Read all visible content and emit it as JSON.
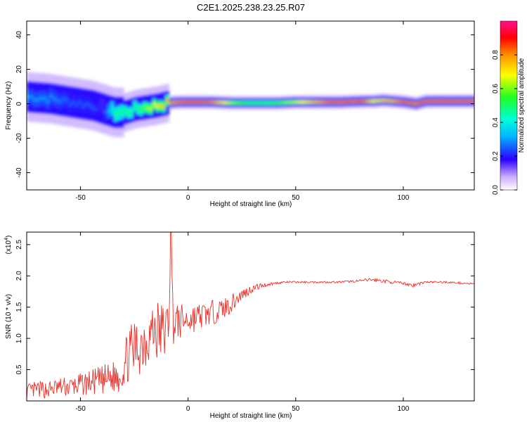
{
  "title": "C2E1.2025.238.23.25.R07",
  "chart_data": [
    {
      "type": "heatmap",
      "name": "spectrogram",
      "xlabel": "Height of straight line (km)",
      "ylabel": "Frequency (Hz)",
      "xlim": [
        -75,
        133
      ],
      "ylim": [
        -50,
        48
      ],
      "x_ticks": [
        -50,
        0,
        50,
        100
      ],
      "y_ticks": [
        -40,
        -20,
        0,
        20,
        40
      ],
      "colorbar": {
        "label": "Normalized spectral amplitude",
        "range": [
          0,
          1
        ],
        "ticks": [
          "0.0",
          "0.2",
          "0.4",
          "0.6",
          "0.8"
        ]
      },
      "ridge": {
        "x": [
          -75,
          -65,
          -55,
          -45,
          -40,
          -35,
          -30,
          -25,
          -20,
          -15,
          -10,
          -5,
          0,
          5,
          10,
          20,
          30,
          40,
          50,
          60,
          70,
          80,
          85,
          90,
          95,
          100,
          105,
          110,
          120,
          133
        ],
        "freq": [
          4,
          3,
          1,
          -1,
          -3,
          -5,
          -5,
          -3,
          -2,
          -1,
          0.5,
          1,
          1,
          1,
          1,
          0.5,
          0.5,
          0.5,
          1,
          1,
          1,
          1.5,
          1.5,
          2,
          1.5,
          1,
          0,
          1.5,
          1.5,
          1.5
        ],
        "amp": [
          0.3,
          0.3,
          0.25,
          0.25,
          0.2,
          0.5,
          0.5,
          0.5,
          0.6,
          0.7,
          0.8,
          0.85,
          0.9,
          0.9,
          0.85,
          0.6,
          0.5,
          0.55,
          0.65,
          0.8,
          0.95,
          0.9,
          0.7,
          0.75,
          0.8,
          0.9,
          0.85,
          0.95,
          0.95,
          0.95
        ]
      }
    },
    {
      "type": "line",
      "name": "snr",
      "xlabel": "Height of straight line (km)",
      "ylabel": "SNR (10 * v/v)",
      "scale_label": "(x10",
      "scale_exp": "4",
      "scale_close": ")",
      "xlim": [
        -75,
        133
      ],
      "ylim": [
        0,
        2.7
      ],
      "x_ticks": [
        -50,
        0,
        50,
        100
      ],
      "y_ticks": [
        "0.5",
        "1.0",
        "1.5",
        "2.0",
        "2.5"
      ],
      "series": [
        {
          "name": "SNR",
          "color": "#e8302a",
          "x": [
            -75,
            -70,
            -65,
            -60,
            -55,
            -50,
            -45,
            -40,
            -35,
            -32,
            -30,
            -28,
            -25,
            -22,
            -20,
            -18,
            -15,
            -12,
            -10,
            -9,
            -8,
            -7,
            -5,
            0,
            5,
            10,
            15,
            20,
            25,
            30,
            35,
            40,
            45,
            50,
            60,
            70,
            80,
            85,
            90,
            100,
            105,
            110,
            120,
            133
          ],
          "y": [
            0.15,
            0.18,
            0.18,
            0.22,
            0.22,
            0.26,
            0.3,
            0.32,
            0.38,
            0.42,
            0.55,
            0.72,
            0.82,
            0.9,
            1.0,
            1.08,
            1.12,
            1.1,
            1.15,
            1.25,
            2.7,
            1.3,
            1.25,
            1.3,
            1.35,
            1.4,
            1.45,
            1.55,
            1.7,
            1.8,
            1.85,
            1.88,
            1.9,
            1.9,
            1.9,
            1.9,
            1.92,
            1.94,
            1.92,
            1.88,
            1.85,
            1.9,
            1.9,
            1.87
          ],
          "noise": [
            0.12,
            0.14,
            0.14,
            0.15,
            0.17,
            0.18,
            0.2,
            0.24,
            0.26,
            0.3,
            0.38,
            0.42,
            0.48,
            0.5,
            0.55,
            0.45,
            0.55,
            0.5,
            0.45,
            0.4,
            0.0,
            0.4,
            0.3,
            0.25,
            0.22,
            0.2,
            0.18,
            0.15,
            0.1,
            0.06,
            0.04,
            0.02,
            0.015,
            0.015,
            0.015,
            0.015,
            0.02,
            0.03,
            0.03,
            0.02,
            0.04,
            0.015,
            0.015,
            0.015
          ]
        }
      ]
    }
  ]
}
